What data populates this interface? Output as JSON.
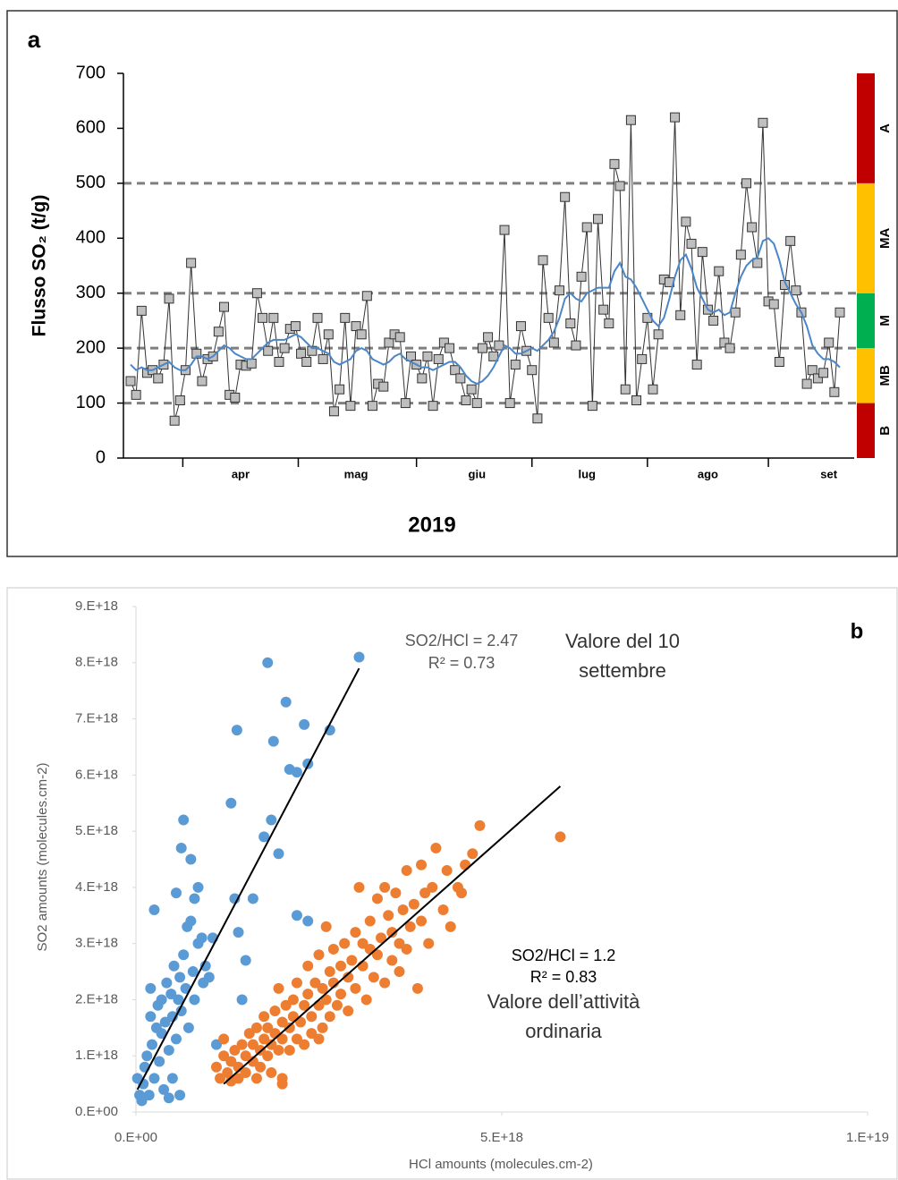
{
  "chart_data": [
    {
      "type": "line",
      "panel": "a",
      "ylabel": "Flusso SO₂ (t/g)",
      "xlabel": "2019",
      "categories": [
        null,
        null,
        null,
        null,
        null,
        null,
        null,
        null,
        null,
        null,
        null,
        null,
        null,
        null,
        null,
        null,
        null,
        null,
        null,
        null,
        "apr",
        null,
        null,
        null,
        null,
        null,
        null,
        null,
        null,
        null,
        null,
        null,
        null,
        null,
        null,
        null,
        null,
        null,
        null,
        null,
        null,
        "mag",
        null,
        null,
        null,
        null,
        null,
        null,
        null,
        null,
        null,
        null,
        null,
        null,
        null,
        null,
        null,
        null,
        null,
        null,
        null,
        null,
        null,
        "giu",
        null,
        null,
        null,
        null,
        null,
        null,
        null,
        null,
        null,
        null,
        null,
        null,
        null,
        null,
        null,
        null,
        null,
        null,
        null,
        "lug",
        null,
        null,
        null,
        null,
        null,
        null,
        null,
        null,
        null,
        null,
        null,
        null,
        null,
        null,
        null,
        null,
        null,
        null,
        null,
        null,
        null,
        "ago",
        null,
        null,
        null,
        null,
        null,
        null,
        null,
        null,
        null,
        null,
        null,
        null,
        null,
        null,
        null,
        null,
        null,
        null,
        null,
        null,
        null,
        "set",
        null,
        null
      ],
      "ylim": [
        0,
        700
      ],
      "yticks": [
        0,
        100,
        200,
        300,
        400,
        500,
        600,
        700
      ],
      "series": [
        {
          "color": "#333333",
          "marker": "square",
          "marker_color": "#bfbfbf",
          "values": [
            140,
            115,
            268,
            155,
            160,
            145,
            170,
            290,
            68,
            105,
            160,
            355,
            190,
            140,
            180,
            185,
            230,
            275,
            115,
            110,
            170,
            168,
            172,
            300,
            255,
            195,
            255,
            175,
            200,
            235,
            240,
            190,
            175,
            195,
            255,
            180,
            225,
            85,
            125,
            255,
            95,
            240,
            225,
            295,
            95,
            135,
            130,
            210,
            225,
            220,
            100,
            185,
            170,
            145,
            185,
            95,
            180,
            210,
            200,
            160,
            145,
            105,
            125,
            100,
            200,
            220,
            185,
            205,
            415,
            100,
            170,
            240,
            195,
            160,
            72,
            360,
            255,
            210,
            305,
            475,
            245,
            205,
            330,
            420,
            95,
            435,
            270,
            245,
            535,
            495,
            125,
            615,
            105,
            180,
            255,
            125,
            225,
            325,
            320,
            620,
            260,
            430,
            390,
            170,
            375,
            270,
            250,
            340,
            210,
            200,
            265,
            370,
            500,
            420,
            355,
            610,
            285,
            280,
            175,
            315,
            395,
            305,
            265,
            135,
            160,
            145,
            155,
            210,
            120,
            265
          ]
        },
        {
          "color": "#4a86c8",
          "values": [
            170,
            160,
            165,
            160,
            160,
            165,
            170,
            175,
            165,
            160,
            160,
            170,
            185,
            185,
            180,
            185,
            195,
            205,
            200,
            190,
            185,
            180,
            180,
            190,
            200,
            210,
            215,
            215,
            215,
            220,
            225,
            220,
            210,
            200,
            200,
            195,
            190,
            175,
            170,
            175,
            180,
            195,
            200,
            195,
            180,
            175,
            170,
            175,
            185,
            190,
            180,
            175,
            170,
            165,
            165,
            160,
            165,
            170,
            175,
            175,
            165,
            150,
            140,
            135,
            140,
            150,
            165,
            185,
            205,
            200,
            190,
            190,
            195,
            200,
            195,
            205,
            215,
            230,
            255,
            290,
            300,
            290,
            285,
            300,
            305,
            310,
            310,
            310,
            340,
            355,
            330,
            325,
            310,
            290,
            270,
            250,
            240,
            255,
            290,
            330,
            360,
            370,
            345,
            310,
            290,
            270,
            265,
            270,
            260,
            265,
            300,
            330,
            350,
            360,
            365,
            395,
            400,
            390,
            360,
            320,
            300,
            280,
            265,
            240,
            205,
            190,
            180,
            180,
            175,
            165
          ]
        }
      ],
      "bands": [
        {
          "from": 0,
          "to": 100,
          "label": "B",
          "color": "#c00000"
        },
        {
          "from": 100,
          "to": 200,
          "label": "MB",
          "color": "#ffc000"
        },
        {
          "from": 200,
          "to": 300,
          "label": "M",
          "color": "#00b050"
        },
        {
          "from": 300,
          "to": 500,
          "label": "MA",
          "color": "#ffc000"
        },
        {
          "from": 500,
          "to": 700,
          "label": "A",
          "color": "#c00000"
        }
      ]
    },
    {
      "type": "scatter",
      "panel": "b",
      "xlabel": "HCl amounts  (molecules.cm-2)",
      "ylabel": "SO2 amounts  (molecules.cm-2)",
      "xlim": [
        0,
        1e+19
      ],
      "xticks": [
        {
          "value": 0,
          "label": "0.E+00"
        },
        {
          "value": 5e+18,
          "label": "5.E+18"
        },
        {
          "value": 1e+19,
          "label": "1.E+19"
        }
      ],
      "ylim": [
        0,
        9e+18
      ],
      "yticks": [
        {
          "value": 0,
          "label": "0.E+00"
        },
        {
          "value": 1e+18,
          "label": "1.E+18"
        },
        {
          "value": 2e+18,
          "label": "2.E+18"
        },
        {
          "value": 3e+18,
          "label": "3.E+18"
        },
        {
          "value": 4e+18,
          "label": "4.E+18"
        },
        {
          "value": 5e+18,
          "label": "5.E+18"
        },
        {
          "value": 6e+18,
          "label": "6.E+18"
        },
        {
          "value": 7e+18,
          "label": "7.E+18"
        },
        {
          "value": 8e+18,
          "label": "8.E+18"
        },
        {
          "value": 9e+18,
          "label": "9.E+18"
        }
      ],
      "annotations": [
        "SO2/HCl = 2.47",
        "R² = 0.73",
        "Valore del 10",
        "settembre",
        "SO2/HCl = 1.2",
        "R² = 0.83",
        "Valore dell’attività",
        "ordinaria"
      ],
      "series": [
        {
          "color": "#5b9bd5",
          "x": [
            2e+16,
            5e+16,
            8e+16,
            1e+17,
            1.2e+17,
            1.5e+17,
            1.8e+17,
            2e+17,
            2e+17,
            2.2e+17,
            2.5e+17,
            2.5e+17,
            2.8e+17,
            3e+17,
            3.2e+17,
            3.5e+17,
            3.5e+17,
            3.8e+17,
            4e+17,
            4.2e+17,
            4.5e+17,
            4.5e+17,
            4.8e+17,
            5e+17,
            5e+17,
            5.2e+17,
            5.5e+17,
            5.5e+17,
            5.8e+17,
            6e+17,
            6e+17,
            6.2e+17,
            6.2e+17,
            6.5e+17,
            6.5e+17,
            6.8e+17,
            7e+17,
            7.2e+17,
            7.5e+17,
            7.5e+17,
            7.8e+17,
            8e+17,
            8e+17,
            8.5e+17,
            8.5e+17,
            9e+17,
            9.2e+17,
            9.5e+17,
            1e+18,
            1.05e+18,
            1.1e+18,
            1.3e+18,
            1.35e+18,
            1.38e+18,
            1.4e+18,
            1.45e+18,
            1.5e+18,
            1.6e+18,
            1.75e+18,
            1.8e+18,
            1.85e+18,
            1.88e+18,
            1.95e+18,
            2.05e+18,
            2.1e+18,
            2.2e+18,
            2.2e+18,
            2.3e+18,
            2.35e+18,
            2.35e+18,
            2.65e+18,
            3.05e+18
          ],
          "y": [
            6e+17,
            3e+17,
            2e+17,
            5e+17,
            8e+17,
            1e+18,
            3e+17,
            2.2e+18,
            1.7e+18,
            1.2e+18,
            3.6e+18,
            6e+17,
            1.5e+18,
            1.9e+18,
            9e+17,
            1.4e+18,
            2e+18,
            4e+17,
            1.6e+18,
            2.3e+18,
            1.1e+18,
            2.5e+17,
            2.1e+18,
            1.7e+18,
            6e+17,
            2.6e+18,
            1.3e+18,
            3.9e+18,
            2e+18,
            2.4e+18,
            3e+17,
            4.7e+18,
            1.8e+18,
            2.8e+18,
            5.2e+18,
            2.2e+18,
            3.3e+18,
            1.5e+18,
            3.4e+18,
            4.5e+18,
            2.5e+18,
            3.8e+18,
            2e+18,
            4e+18,
            3e+18,
            3.1e+18,
            2.3e+18,
            2.6e+18,
            2.4e+18,
            3.1e+18,
            1.2e+18,
            5.5e+18,
            3.8e+18,
            6.8e+18,
            3.2e+18,
            2e+18,
            2.7e+18,
            3.8e+18,
            4.9e+18,
            8e+18,
            5.2e+18,
            6.6e+18,
            4.6e+18,
            7.3e+18,
            6.1e+18,
            6.05e+18,
            3.5e+18,
            6.9e+18,
            6.2e+18,
            3.4e+18,
            6.8e+18,
            8.1e+18
          ],
          "trendline": {
            "x": [
              2e+16,
              3.05e+18
            ],
            "y": [
              4e+17,
              7.9e+18
            ]
          }
        },
        {
          "color": "#ed7d31",
          "x": [
            1.1e+18,
            1.15e+18,
            1.2e+18,
            1.2e+18,
            1.25e+18,
            1.3e+18,
            1.35e+18,
            1.4e+18,
            1.4e+18,
            1.45e+18,
            1.5e+18,
            1.5e+18,
            1.55e+18,
            1.6e+18,
            1.6e+18,
            1.65e+18,
            1.65e+18,
            1.7e+18,
            1.7e+18,
            1.75e+18,
            1.75e+18,
            1.8e+18,
            1.8e+18,
            1.85e+18,
            1.85e+18,
            1.9e+18,
            1.9e+18,
            1.95e+18,
            1.95e+18,
            2e+18,
            2e+18,
            2e+18,
            2.05e+18,
            2.1e+18,
            2.1e+18,
            2.15e+18,
            2.15e+18,
            2.2e+18,
            2.2e+18,
            2.25e+18,
            2.3e+18,
            2.3e+18,
            2.35e+18,
            2.35e+18,
            2.4e+18,
            2.4e+18,
            2.45e+18,
            2.5e+18,
            2.5e+18,
            2.55e+18,
            2.55e+18,
            2.6e+18,
            2.6e+18,
            2.65e+18,
            2.65e+18,
            2.7e+18,
            2.7e+18,
            2.75e+18,
            2.8e+18,
            2.8e+18,
            2.85e+18,
            2.9e+18,
            2.9e+18,
            2.95e+18,
            3e+18,
            3e+18,
            3.05e+18,
            3.1e+18,
            3.1e+18,
            3.15e+18,
            3.2e+18,
            3.2e+18,
            3.25e+18,
            3.3e+18,
            3.3e+18,
            3.35e+18,
            3.4e+18,
            3.4e+18,
            3.45e+18,
            3.5e+18,
            3.5e+18,
            3.55e+18,
            3.6e+18,
            3.6e+18,
            3.65e+18,
            3.7e+18,
            3.7e+18,
            3.75e+18,
            3.8e+18,
            3.85e+18,
            3.9e+18,
            3.9e+18,
            3.95e+18,
            4e+18,
            4.05e+18,
            4.1e+18,
            4.2e+18,
            4.25e+18,
            4.3e+18,
            4.4e+18,
            4.45e+18,
            4.5e+18,
            4.6e+18,
            4.7e+18,
            5.8e+18,
            2e+18,
            1.3e+18,
            2.5e+18
          ],
          "y": [
            8e+17,
            6e+17,
            1e+18,
            1.3e+18,
            7e+17,
            9e+17,
            1.1e+18,
            6e+17,
            8e+17,
            1.2e+18,
            1e+18,
            7e+17,
            1.4e+18,
            9e+17,
            1.2e+18,
            6e+17,
            1.5e+18,
            1.1e+18,
            8e+17,
            1.3e+18,
            1.7e+18,
            1e+18,
            1.5e+18,
            1.2e+18,
            7e+17,
            1.8e+18,
            1.4e+18,
            1.1e+18,
            2.2e+18,
            6e+17,
            1.6e+18,
            1.3e+18,
            1.9e+18,
            1.5e+18,
            1.1e+18,
            2e+18,
            1.7e+18,
            1.3e+18,
            2.3e+18,
            1.6e+18,
            1.9e+18,
            1.2e+18,
            2.1e+18,
            2.6e+18,
            1.7e+18,
            1.4e+18,
            2.3e+18,
            1.9e+18,
            2.8e+18,
            1.5e+18,
            2.2e+18,
            2e+18,
            3.3e+18,
            2.5e+18,
            1.7e+18,
            2.3e+18,
            2.9e+18,
            1.9e+18,
            2.6e+18,
            2.1e+18,
            3e+18,
            2.4e+18,
            1.8e+18,
            2.7e+18,
            3.2e+18,
            2.2e+18,
            4e+18,
            2.6e+18,
            3e+18,
            2e+18,
            2.9e+18,
            3.4e+18,
            2.4e+18,
            3.8e+18,
            2.8e+18,
            3.1e+18,
            2.3e+18,
            4e+18,
            3.5e+18,
            2.7e+18,
            3.2e+18,
            3.9e+18,
            3e+18,
            2.5e+18,
            3.6e+18,
            4.3e+18,
            2.9e+18,
            3.3e+18,
            3.7e+18,
            2.2e+18,
            3.4e+18,
            4.4e+18,
            3.9e+18,
            3e+18,
            4e+18,
            4.7e+18,
            3.6e+18,
            4.3e+18,
            3.3e+18,
            4e+18,
            3.9e+18,
            4.4e+18,
            4.6e+18,
            5.1e+18,
            4.9e+18,
            5e+17,
            5.5e+17,
            1.3e+18
          ],
          "trendline": {
            "x": [
              1.2e+18,
              5.8e+18
            ],
            "y": [
              5e+17,
              5.8e+18
            ]
          }
        }
      ]
    }
  ]
}
